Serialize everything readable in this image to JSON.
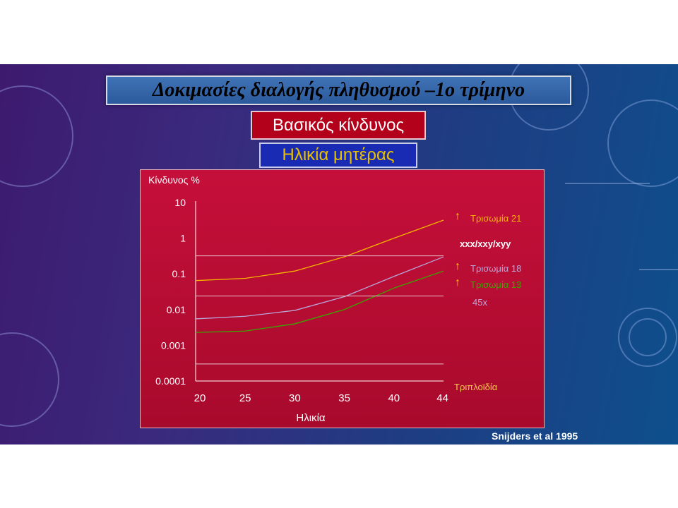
{
  "slide": {
    "title": "Δοκιμασίες διαλογής πληθυσμού –1ο τρίμηνο",
    "risk_label": "Βασικός κίνδυνος",
    "age_label": "Ηλικία μητέρας",
    "source": "Snijders et al 1995"
  },
  "colors": {
    "background_start": "#3d1a6e",
    "background_end": "#0e4f8c",
    "panel": "#c50f3a",
    "trisomy21": "#f5b400",
    "trisomy18": "#b9a6d9",
    "trisomy13": "#38a800",
    "xxx_label": "#ffffff",
    "x45_label": "#b9a6d9",
    "triploidy_label": "#f5c74a"
  },
  "chart_data": {
    "type": "line",
    "ylabel": "Κίνδυνος %",
    "xlabel": "Ηλικία",
    "y_scale": "log",
    "ylim": [
      0.0001,
      10
    ],
    "y_ticks": [
      "10",
      "1",
      "0.1",
      "0.01",
      "0.001",
      "0.0001"
    ],
    "y_tick_values": [
      10,
      1,
      0.1,
      0.01,
      0.001,
      0.0001
    ],
    "x_ticks": [
      "20",
      "25",
      "30",
      "35",
      "40",
      "44"
    ],
    "x_tick_values": [
      20,
      25,
      30,
      35,
      40,
      44
    ],
    "xlim": [
      20,
      45
    ],
    "grid": false,
    "series": [
      {
        "name": "Τρισωμία 21",
        "color_key": "trisomy21",
        "arrow": "↑",
        "x": [
          20,
          25,
          30,
          35,
          40,
          45
        ],
        "y": [
          0.065,
          0.075,
          0.12,
          0.3,
          1.0,
          3.2
        ]
      },
      {
        "name": "Τρισωμία 18",
        "color_key": "trisomy18",
        "arrow": "↑",
        "x": [
          20,
          25,
          30,
          35,
          40,
          45
        ],
        "y": [
          0.0055,
          0.0065,
          0.0095,
          0.023,
          0.085,
          0.3
        ]
      },
      {
        "name": "Τρισωμία 13",
        "color_key": "trisomy13",
        "arrow": "↑",
        "x": [
          20,
          25,
          30,
          35,
          40,
          45
        ],
        "y": [
          0.0023,
          0.0025,
          0.004,
          0.01,
          0.04,
          0.12
        ]
      },
      {
        "name": "xxx/xxy/xyy",
        "color_key": "xxx_label",
        "flat": true,
        "x": [
          20,
          45
        ],
        "y": [
          0.32,
          0.32
        ]
      },
      {
        "name": "45x",
        "color_key": "x45_label",
        "flat": true,
        "x": [
          20,
          45
        ],
        "y": [
          0.024,
          0.024
        ]
      },
      {
        "name": "Τριπλοϊδία",
        "color_key": "triploidy_label",
        "flat": true,
        "x": [
          20,
          45
        ],
        "y": [
          0.0003,
          0.0003
        ]
      }
    ]
  }
}
